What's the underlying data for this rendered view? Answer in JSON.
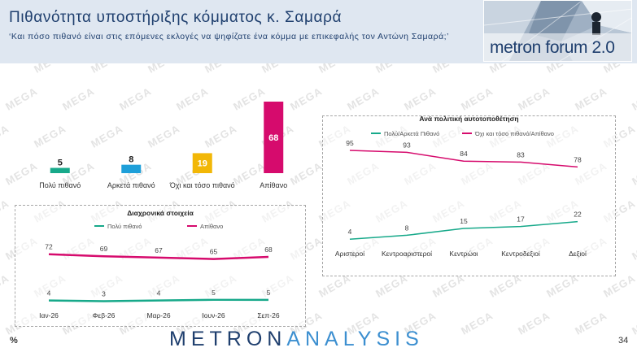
{
  "header": {
    "title": "Πιθανότητα υποστήριξης κόμματος κ. Σαμαρά",
    "subtitle": "‘Και πόσο πιθανό είναι στις επόμενες εκλογές να ψηφίζατε ένα κόμμα με επικεφαλής τον Αντώνη Σαμαρά;’"
  },
  "logo": {
    "text": "metron forum 2.0"
  },
  "watermark": {
    "text": "MEGA"
  },
  "footer": {
    "brand_a": "METRON",
    "brand_b": "ANALYSIS",
    "percent": "%",
    "page": "34"
  },
  "colors": {
    "teal": "#17a98a",
    "light_blue": "#1e9fd9",
    "yellow": "#f2b707",
    "magenta": "#d60b6d",
    "navy": "#1f3f6e",
    "bar_label_bg": "#3b3b3b"
  },
  "chart_data": [
    {
      "type": "bar",
      "categories": [
        "Πολύ πιθανό",
        "Αρκετά πιθανό",
        "Όχι και τόσο πιθανό",
        "Απίθανο"
      ],
      "values": [
        5,
        8,
        19,
        68
      ],
      "colors": [
        "#17a98a",
        "#1e9fd9",
        "#f2b707",
        "#d60b6d"
      ],
      "grid": false
    },
    {
      "type": "line",
      "title": "Διαχρονικά στοιχεία",
      "categories": [
        "Ιαν-26",
        "Φεβ-26",
        "Μαρ-26",
        "Ιουν-26",
        "Σεπ-26"
      ],
      "series": [
        {
          "name": "Πολύ πιθανό",
          "values": [
            4,
            3,
            4,
            5,
            5
          ],
          "color": "#17a98a"
        },
        {
          "name": "Απίθανο",
          "values": [
            72,
            69,
            67,
            65,
            68
          ],
          "color": "#d60b6d"
        }
      ],
      "legend": "top",
      "grid": false
    },
    {
      "type": "line",
      "title": "Ανά πολιτική αυτοτοποθέτηση",
      "categories": [
        "Αριστεροί",
        "Κεντροαριστεροί",
        "Κεντρώοι",
        "Κεντροδεξιοί",
        "Δεξιοί"
      ],
      "series": [
        {
          "name": "Πολύ/Αρκετά Πιθανό",
          "values": [
            4,
            8,
            15,
            17,
            22
          ],
          "color": "#17a98a"
        },
        {
          "name": "Όχι και τόσο πιθανό/Απίθανο",
          "values": [
            95,
            93,
            84,
            83,
            78
          ],
          "color": "#d60b6d"
        }
      ],
      "legend": "top",
      "grid": false
    }
  ]
}
